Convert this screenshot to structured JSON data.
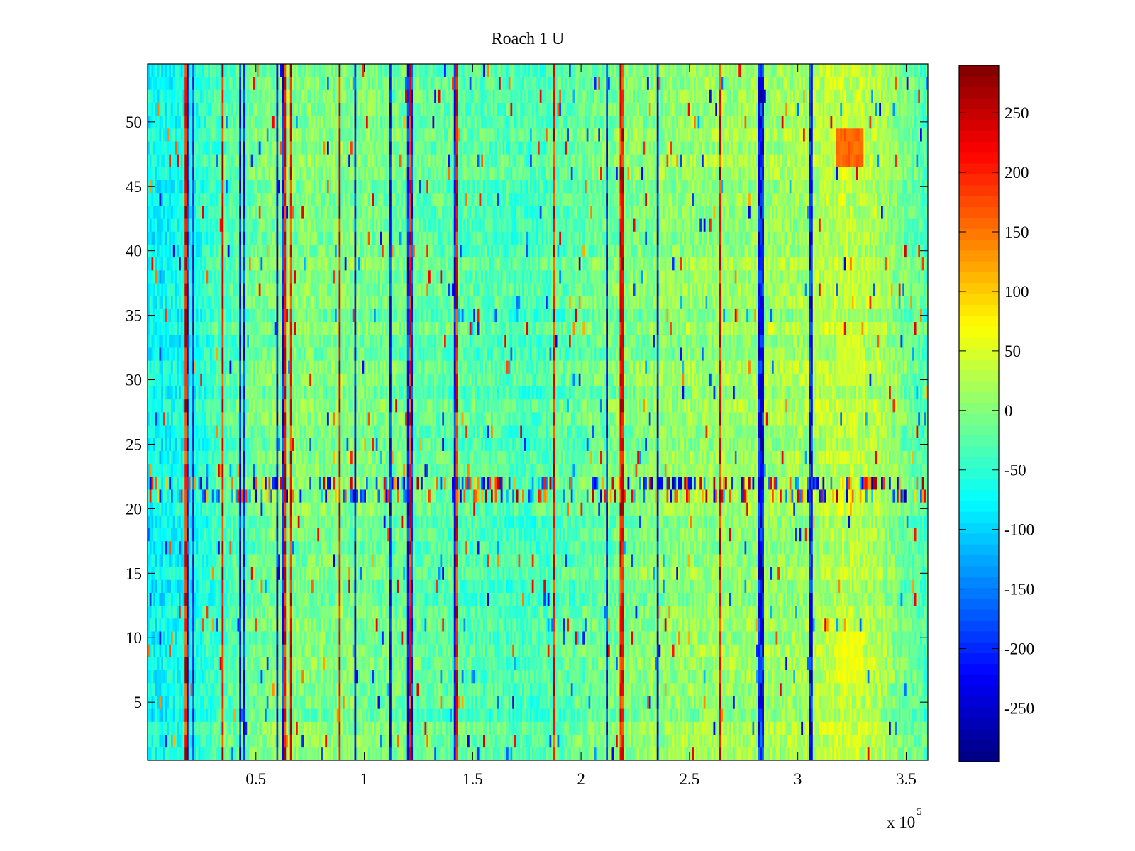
{
  "chart_data": {
    "type": "heatmap",
    "title": "Roach 1 U",
    "xlabel": "",
    "ylabel": "",
    "xlim": [
      0,
      360000
    ],
    "ylim": [
      0.5,
      54.5
    ],
    "x_ticks": [
      50000,
      100000,
      150000,
      200000,
      250000,
      300000,
      350000
    ],
    "x_tick_labels": [
      "0.5",
      "1",
      "1.5",
      "2",
      "2.5",
      "3",
      "3.5"
    ],
    "x_exponent_label": {
      "base": "x 10",
      "power": "5"
    },
    "y_ticks": [
      5,
      10,
      15,
      20,
      25,
      30,
      35,
      40,
      45,
      50
    ],
    "y_tick_labels": [
      "5",
      "10",
      "15",
      "20",
      "25",
      "30",
      "35",
      "40",
      "45",
      "50"
    ],
    "rows": 54,
    "colormap": "jet",
    "clim": [
      -295,
      290
    ],
    "colorbar": {
      "ticks": [
        250,
        200,
        150,
        100,
        50,
        0,
        -50,
        -100,
        -150,
        -200,
        -250
      ],
      "tick_labels": [
        "250",
        "200",
        "150",
        "100",
        "50",
        "0",
        "-50",
        "-100",
        "-150",
        "-200",
        "-250"
      ]
    },
    "baseline_value_profile": [
      {
        "x": 0,
        "value": -75
      },
      {
        "x": 20000,
        "value": -65
      },
      {
        "x": 35000,
        "value": -30
      },
      {
        "x": 60000,
        "value": 0
      },
      {
        "x": 100000,
        "value": -5
      },
      {
        "x": 140000,
        "value": -25
      },
      {
        "x": 180000,
        "value": -35
      },
      {
        "x": 210000,
        "value": -10
      },
      {
        "x": 250000,
        "value": 10
      },
      {
        "x": 300000,
        "value": 15
      },
      {
        "x": 320000,
        "value": 35
      },
      {
        "x": 335000,
        "value": 25
      },
      {
        "x": 350000,
        "value": -10
      },
      {
        "x": 360000,
        "value": -35
      }
    ],
    "strong_columns_x": [
      18000,
      21000,
      35000,
      43000,
      44500,
      60000,
      63000,
      66000,
      89000,
      96000,
      112000,
      120000,
      121500,
      142000,
      143000,
      188000,
      212000,
      218000,
      219500,
      235000,
      264000,
      282000,
      283500,
      306000
    ],
    "notable_regions": [
      {
        "x_range": [
          318000,
          330000
        ],
        "y_range": [
          47,
          49
        ],
        "value": 160
      },
      {
        "x_range": [
          318000,
          330000
        ],
        "y_range": [
          7,
          10
        ],
        "value": 60
      },
      {
        "x_range": [
          318000,
          330000
        ],
        "y_range": [
          30,
          33
        ],
        "value": 45
      },
      {
        "x_range": [
          0,
          360000
        ],
        "y_range": [
          21,
          23
        ],
        "value": "mixed extremes"
      }
    ]
  }
}
